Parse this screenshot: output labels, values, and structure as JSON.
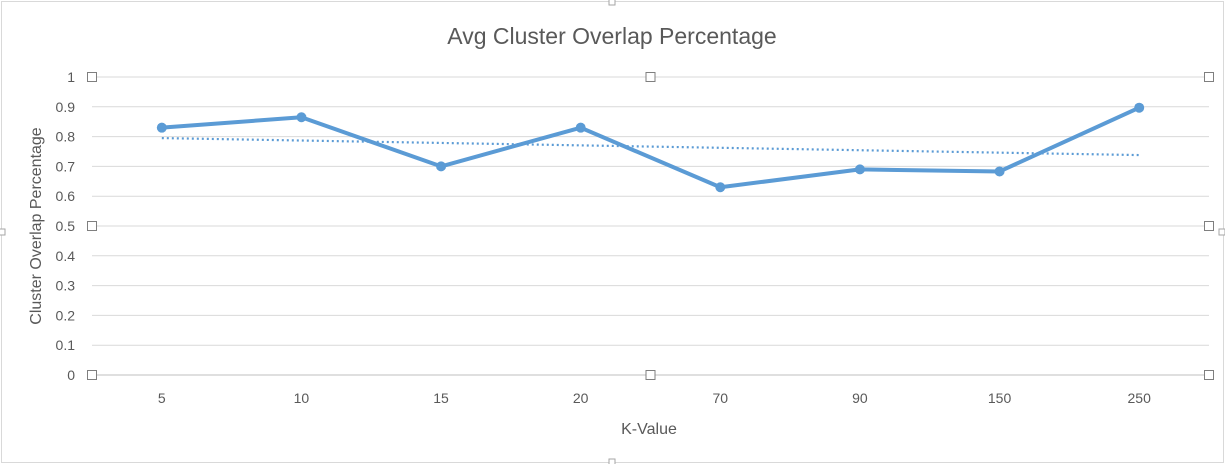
{
  "chart_data": {
    "type": "line",
    "title": "Avg Cluster Overlap Percentage",
    "xlabel": "K-Value",
    "ylabel": "Cluster Overlap Percentage",
    "categories": [
      "5",
      "10",
      "15",
      "20",
      "70",
      "90",
      "150",
      "250"
    ],
    "series": [
      {
        "values": [
          0.83,
          0.865,
          0.7,
          0.83,
          0.63,
          0.69,
          0.683,
          0.897
        ],
        "color": "#5B9BD5"
      }
    ],
    "trendline": {
      "type": "linear",
      "start": 0.795,
      "end": 0.738,
      "color": "#5B9BD5",
      "style": "dotted"
    },
    "ylim": [
      0,
      1
    ],
    "yticks": [
      "0",
      "0.1",
      "0.2",
      "0.3",
      "0.4",
      "0.5",
      "0.6",
      "0.7",
      "0.8",
      "0.9",
      "1"
    ],
    "grid": true,
    "legend": "none",
    "selected": true
  }
}
